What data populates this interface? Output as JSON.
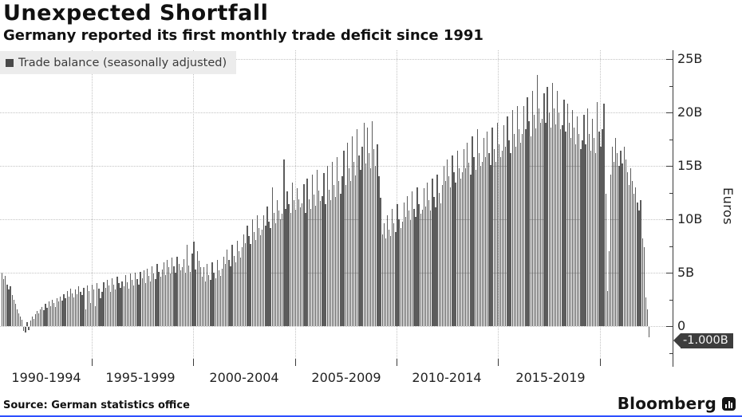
{
  "header": {
    "title": "Unexpected Shortfall",
    "subtitle": "Germany reported its first monthly trade deficit since 1991"
  },
  "legend": {
    "label": "Trade balance (seasonally adjusted)",
    "swatch_color": "#4a4a4a"
  },
  "axis": {
    "y_labels": [
      "25B",
      "20B",
      "15B",
      "10B",
      "5B",
      "0"
    ],
    "y_title": "Euros",
    "x_labels": [
      "1990-1994",
      "1995-1999",
      "2000-2004",
      "2005-2009",
      "2010-2014",
      "2015-2019"
    ],
    "callout": "-1.000B"
  },
  "footer": {
    "source": "Source: German statistics office",
    "brand": "Bloomberg"
  },
  "colors": {
    "bar": "#5c5c5c",
    "callout_bg": "#3d3d3d",
    "legend_bg": "#ececec",
    "accent_bottom_line": "#2d50ff"
  },
  "chart_data": {
    "type": "bar",
    "title": "Unexpected Shortfall",
    "subtitle": "Germany reported its first monthly trade deficit since 1991",
    "series_name": "Trade balance (seasonally adjusted)",
    "ylabel": "Euros",
    "unit": "billions of euros",
    "frequency": "monthly",
    "start": "1990-01",
    "end": "2022-05",
    "ylim": [
      -2,
      26
    ],
    "y_ticks": [
      0,
      5,
      10,
      15,
      20,
      25
    ],
    "x_tick_groups": [
      "1990-1994",
      "1995-1999",
      "2000-2004",
      "2005-2009",
      "2010-2014",
      "2015-2019"
    ],
    "grid": "dotted",
    "legend_position": "top-left",
    "last_value_label": "-1.000B",
    "values": [
      5.0,
      4.4,
      4.7,
      3.9,
      3.4,
      3.7,
      2.9,
      2.5,
      2.1,
      1.6,
      1.2,
      0.9,
      0.6,
      -0.4,
      -0.5,
      0.4,
      -0.3,
      0.5,
      0.9,
      0.7,
      1.1,
      1.4,
      1.2,
      1.6,
      1.8,
      1.5,
      2.1,
      1.7,
      2.3,
      1.9,
      2.5,
      2.2,
      1.8,
      2.6,
      2.3,
      2.8,
      2.4,
      3.0,
      2.6,
      3.3,
      2.8,
      3.5,
      3.1,
      2.7,
      3.4,
      3.0,
      3.7,
      3.2,
      2.9,
      3.6,
      1.6,
      3.8,
      3.3,
      2.2,
      3.9,
      3.4,
      1.9,
      4.0,
      3.5,
      2.6,
      3.2,
      4.1,
      3.6,
      4.3,
      3.8,
      3.2,
      4.5,
      3.9,
      3.4,
      4.6,
      4.0,
      3.6,
      4.2,
      3.7,
      4.8,
      4.1,
      3.5,
      4.9,
      4.3,
      3.8,
      5.0,
      4.4,
      3.9,
      5.1,
      4.5,
      5.2,
      4.0,
      5.4,
      4.7,
      4.2,
      5.6,
      4.9,
      4.4,
      5.8,
      5.1,
      4.6,
      5.3,
      6.0,
      4.8,
      6.2,
      5.5,
      4.9,
      6.4,
      5.6,
      5.0,
      6.5,
      5.8,
      5.2,
      5.5,
      6.3,
      5.0,
      7.6,
      5.7,
      5.1,
      6.8,
      7.9,
      5.3,
      7.0,
      6.1,
      5.5,
      4.6,
      5.5,
      4.2,
      5.8,
      4.8,
      4.3,
      6.0,
      5.0,
      4.5,
      6.2,
      5.2,
      4.7,
      5.4,
      6.5,
      5.8,
      7.2,
      6.2,
      5.6,
      7.6,
      6.6,
      6.0,
      8.0,
      7.0,
      6.4,
      7.4,
      8.6,
      7.8,
      9.4,
      8.4,
      7.7,
      10.0,
      8.8,
      8.1,
      10.4,
      9.2,
      8.5,
      9.0,
      10.4,
      9.4,
      11.2,
      9.8,
      9.2,
      13.0,
      10.6,
      9.6,
      11.8,
      10.8,
      10.0,
      10.5,
      15.6,
      11.0,
      12.6,
      11.4,
      10.6,
      13.4,
      11.8,
      10.9,
      12.9,
      11.9,
      11.1,
      11.5,
      13.3,
      10.6,
      13.8,
      11.9,
      11.0,
      14.2,
      12.3,
      11.3,
      14.6,
      12.7,
      11.7,
      12.2,
      14.3,
      11.4,
      15.0,
      12.8,
      11.8,
      15.4,
      13.2,
      12.1,
      15.8,
      13.6,
      12.4,
      14.0,
      16.4,
      13.2,
      17.2,
      14.8,
      13.6,
      17.8,
      15.4,
      14.1,
      18.4,
      16.0,
      14.6,
      16.8,
      19.0,
      15.2,
      18.6,
      16.2,
      14.8,
      19.2,
      16.6,
      15.0,
      17.0,
      14.0,
      12.0,
      8.6,
      9.6,
      8.2,
      10.4,
      9.0,
      8.4,
      11.0,
      9.6,
      8.8,
      11.4,
      10.0,
      9.2,
      9.8,
      11.6,
      10.2,
      12.2,
      10.8,
      9.9,
      12.6,
      11.0,
      10.2,
      13.0,
      11.4,
      10.5,
      10.9,
      12.9,
      11.2,
      13.4,
      11.8,
      10.8,
      13.8,
      12.1,
      11.1,
      14.2,
      12.5,
      11.5,
      13.2,
      15.0,
      13.6,
      15.6,
      14.0,
      13.0,
      16.0,
      14.4,
      13.4,
      16.4,
      14.8,
      13.8,
      14.4,
      16.6,
      14.8,
      17.2,
      15.3,
      14.2,
      17.8,
      15.8,
      14.6,
      18.4,
      16.2,
      15.0,
      15.4,
      17.6,
      15.8,
      18.2,
      16.2,
      15.1,
      18.6,
      16.6,
      15.4,
      19.0,
      17.0,
      15.8,
      16.4,
      18.8,
      16.8,
      19.6,
      17.4,
      16.2,
      20.2,
      18.0,
      16.8,
      20.6,
      18.4,
      17.2,
      18.0,
      20.6,
      18.4,
      21.4,
      19.2,
      17.8,
      22.0,
      19.8,
      18.5,
      23.5,
      20.4,
      19.0,
      19.4,
      21.8,
      19.0,
      22.4,
      20.0,
      18.6,
      22.8,
      20.4,
      18.9,
      22.0,
      20.0,
      18.4,
      18.8,
      21.2,
      18.2,
      20.8,
      19.0,
      17.6,
      20.2,
      18.6,
      17.0,
      19.6,
      18.0,
      16.6,
      17.4,
      19.8,
      17.0,
      20.4,
      18.0,
      16.4,
      19.4,
      17.6,
      16.2,
      21.0,
      18.2,
      16.8,
      18.4,
      20.8,
      12.4,
      3.3,
      7.0,
      14.2,
      16.8,
      15.4,
      17.6,
      16.2,
      15.0,
      16.4,
      15.2,
      16.8,
      15.6,
      14.4,
      13.2,
      14.8,
      13.6,
      12.4,
      13.0,
      11.6,
      10.8,
      11.8,
      8.2,
      7.4,
      2.7,
      1.6,
      -1.0
    ]
  }
}
